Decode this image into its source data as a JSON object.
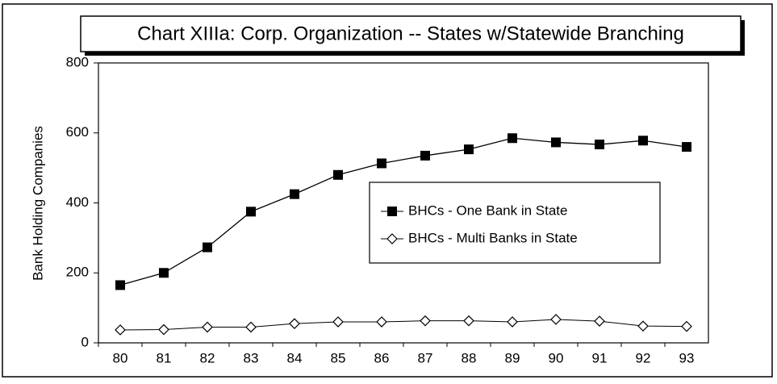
{
  "chart_data": {
    "type": "line",
    "title": "Chart XIIIa: Corp. Organization -- States w/Statewide Branching",
    "y_label": "Bank Holding Companies",
    "categories": [
      "80",
      "81",
      "82",
      "83",
      "84",
      "85",
      "86",
      "87",
      "88",
      "89",
      "90",
      "91",
      "92",
      "93"
    ],
    "series": [
      {
        "name": "BHCs - One Bank in State",
        "color": "#000000",
        "marker": "square",
        "values": [
          165,
          200,
          273,
          375,
          425,
          480,
          513,
          535,
          553,
          585,
          573,
          567,
          578,
          560
        ]
      },
      {
        "name": "BHCs - Multi Banks in State",
        "color": "#000000",
        "marker": "diamond",
        "values": [
          37,
          38,
          45,
          45,
          55,
          60,
          60,
          63,
          63,
          60,
          67,
          62,
          48,
          47
        ]
      }
    ],
    "ylim": [
      0,
      800
    ],
    "yticks": [
      0,
      200,
      400,
      600,
      800
    ],
    "grid": false
  }
}
